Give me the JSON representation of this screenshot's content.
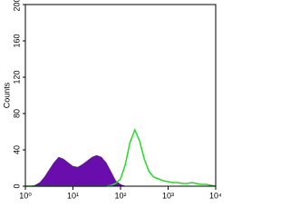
{
  "chart_data": {
    "type": "histogram-overlay",
    "y_label": "Counts",
    "xscale": "log",
    "xlim": [
      1,
      10000
    ],
    "xticks": [
      {
        "value": 1,
        "label": "10⁰"
      },
      {
        "value": 10,
        "label": "10¹"
      },
      {
        "value": 100,
        "label": "10²"
      },
      {
        "value": 1000,
        "label": "10³"
      },
      {
        "value": 10000,
        "label": "10⁴"
      }
    ],
    "ylim": [
      0,
      200
    ],
    "yticks": [
      0,
      40,
      80,
      120,
      160,
      200
    ],
    "x": [
      1,
      1.26,
      1.58,
      2,
      2.51,
      3.16,
      3.98,
      5.01,
      6.31,
      7.94,
      10,
      12.6,
      15.8,
      20,
      25.1,
      31.6,
      39.8,
      50.1,
      63.1,
      79.4,
      100,
      126,
      158,
      200,
      251,
      316,
      398,
      501,
      631,
      794,
      1000,
      1259,
      1585,
      1995,
      2512,
      3162,
      3981,
      5012,
      6310,
      7943,
      10000
    ],
    "series": [
      {
        "color": "#6a0dad",
        "fill": true,
        "values": [
          0,
          0,
          1,
          4,
          10,
          18,
          26,
          32,
          30,
          26,
          22,
          21,
          24,
          28,
          32,
          34,
          32,
          26,
          16,
          6,
          2,
          0,
          0,
          0,
          0,
          0,
          0,
          0,
          0,
          0,
          0,
          0,
          0,
          0,
          0,
          0,
          0,
          0,
          0,
          0,
          0
        ]
      },
      {
        "color": "#22dd22",
        "fill": false,
        "values": [
          0,
          0,
          0,
          0,
          0,
          0,
          0,
          0,
          0,
          0,
          0,
          0,
          0,
          0,
          0,
          0,
          0,
          0,
          1,
          3,
          8,
          24,
          48,
          62,
          50,
          30,
          16,
          10,
          8,
          6,
          5,
          4,
          4,
          3,
          3,
          4,
          3,
          2,
          2,
          1,
          0
        ]
      }
    ]
  }
}
